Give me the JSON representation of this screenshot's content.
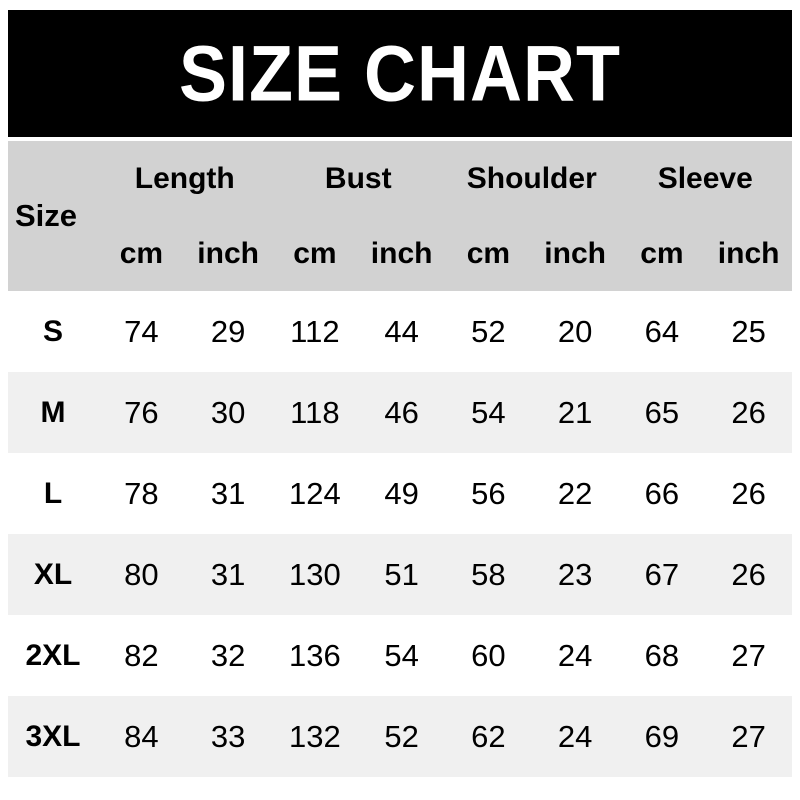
{
  "banner": {
    "title": "SIZE CHART",
    "bg_color": "#000000",
    "text_color": "#ffffff"
  },
  "table": {
    "corner_label": "Size",
    "group_headers": [
      "Length",
      "Bust",
      "Shoulder",
      "Sleeve"
    ],
    "unit_headers": [
      "cm",
      "inch",
      "cm",
      "inch",
      "cm",
      "inch",
      "cm",
      "inch"
    ],
    "rows": [
      {
        "size": "S",
        "values": [
          "74",
          "29",
          "112",
          "44",
          "52",
          "20",
          "64",
          "25"
        ]
      },
      {
        "size": "M",
        "values": [
          "76",
          "30",
          "118",
          "46",
          "54",
          "21",
          "65",
          "26"
        ]
      },
      {
        "size": "L",
        "values": [
          "78",
          "31",
          "124",
          "49",
          "56",
          "22",
          "66",
          "26"
        ]
      },
      {
        "size": "XL",
        "values": [
          "80",
          "31",
          "130",
          "51",
          "58",
          "23",
          "67",
          "26"
        ]
      },
      {
        "size": "2XL",
        "values": [
          "82",
          "32",
          "136",
          "54",
          "60",
          "24",
          "68",
          "27"
        ]
      },
      {
        "size": "3XL",
        "values": [
          "84",
          "33",
          "132",
          "52",
          "62",
          "24",
          "69",
          "27"
        ]
      }
    ],
    "header_bg": "#d2d2d2",
    "row_bg": "#ffffff",
    "row_alt_bg": "#f0f0f0",
    "text_color": "#000000"
  },
  "chart_data": {
    "type": "table",
    "title": "SIZE CHART",
    "columns": [
      "Size",
      "Length cm",
      "Length inch",
      "Bust cm",
      "Bust inch",
      "Shoulder cm",
      "Shoulder inch",
      "Sleeve cm",
      "Sleeve inch"
    ],
    "rows": [
      [
        "S",
        74,
        29,
        112,
        44,
        52,
        20,
        64,
        25
      ],
      [
        "M",
        76,
        30,
        118,
        46,
        54,
        21,
        65,
        26
      ],
      [
        "L",
        78,
        31,
        124,
        49,
        56,
        22,
        66,
        26
      ],
      [
        "XL",
        80,
        31,
        130,
        51,
        58,
        23,
        67,
        26
      ],
      [
        "2XL",
        82,
        32,
        136,
        54,
        60,
        24,
        68,
        27
      ],
      [
        "3XL",
        84,
        33,
        132,
        52,
        62,
        24,
        69,
        27
      ]
    ]
  }
}
